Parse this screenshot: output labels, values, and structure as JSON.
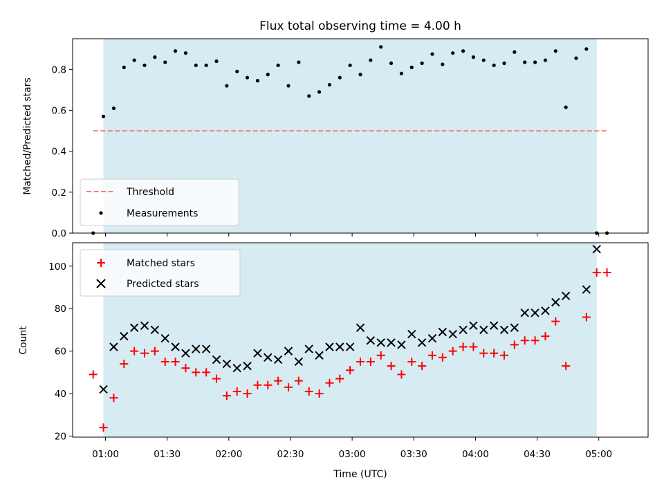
{
  "chart_data": {
    "type": "scatter",
    "title": "Flux total observing time = 4.00 h",
    "xlabel": "Time (UTC)",
    "x_unit": "UTC time",
    "shaded_interval": [
      "00:59",
      "04:59"
    ],
    "shade_color": "#add8e6",
    "x_ticks": [
      "01:00",
      "01:30",
      "02:00",
      "02:30",
      "03:00",
      "03:30",
      "04:00",
      "04:30",
      "05:00"
    ],
    "panels": [
      {
        "ylabel": "Matched/Predicted stars",
        "ylim": [
          0,
          0.95
        ],
        "y_ticks": [
          "0.0",
          "0.2",
          "0.4",
          "0.6",
          "0.8"
        ],
        "legend": {
          "placement": "lower-left",
          "entries": [
            "Threshold",
            "Measurements"
          ]
        },
        "series": [
          {
            "name": "Threshold",
            "type": "line",
            "color": "#f08080",
            "style": "dashed",
            "x": [
              "00:54",
              "05:04"
            ],
            "y": [
              0.5,
              0.5
            ]
          },
          {
            "name": "Measurements",
            "type": "scatter",
            "color": "#000000",
            "marker": "dot",
            "x": [
              "00:54",
              "00:59",
              "01:04",
              "01:09",
              "01:14",
              "01:19",
              "01:24",
              "01:29",
              "01:34",
              "01:39",
              "01:44",
              "01:49",
              "01:54",
              "01:59",
              "02:04",
              "02:09",
              "02:14",
              "02:19",
              "02:24",
              "02:29",
              "02:34",
              "02:39",
              "02:44",
              "02:49",
              "02:54",
              "02:59",
              "03:04",
              "03:09",
              "03:14",
              "03:19",
              "03:24",
              "03:29",
              "03:34",
              "03:39",
              "03:44",
              "03:49",
              "03:54",
              "03:59",
              "04:04",
              "04:09",
              "04:14",
              "04:19",
              "04:24",
              "04:29",
              "04:34",
              "04:39",
              "04:44",
              "04:49",
              "04:54",
              "04:59",
              "05:04"
            ],
            "y": [
              0.0,
              0.57,
              0.61,
              0.81,
              0.845,
              0.82,
              0.86,
              0.835,
              0.89,
              0.88,
              0.82,
              0.82,
              0.84,
              0.72,
              0.79,
              0.76,
              0.745,
              0.775,
              0.82,
              0.72,
              0.835,
              0.67,
              0.69,
              0.725,
              0.76,
              0.82,
              0.775,
              0.845,
              0.91,
              0.83,
              0.78,
              0.81,
              0.83,
              0.875,
              0.825,
              0.88,
              0.89,
              0.86,
              0.845,
              0.82,
              0.83,
              0.885,
              0.835,
              0.835,
              0.845,
              0.89,
              0.615,
              0.855,
              0.9,
              0.0,
              0.0
            ]
          }
        ]
      },
      {
        "ylabel": "Count",
        "ylim": [
          19.5,
          111
        ],
        "y_ticks": [
          "20",
          "40",
          "60",
          "80",
          "100"
        ],
        "legend": {
          "placement": "upper-left",
          "entries": [
            "Matched stars",
            "Predicted stars"
          ]
        },
        "series": [
          {
            "name": "Matched stars",
            "type": "scatter",
            "color": "#ff0000",
            "marker": "plus",
            "x": [
              "00:54",
              "00:59",
              "01:04",
              "01:09",
              "01:14",
              "01:19",
              "01:24",
              "01:29",
              "01:34",
              "01:39",
              "01:44",
              "01:49",
              "01:54",
              "01:59",
              "02:04",
              "02:09",
              "02:14",
              "02:19",
              "02:24",
              "02:29",
              "02:34",
              "02:39",
              "02:44",
              "02:49",
              "02:54",
              "02:59",
              "03:04",
              "03:09",
              "03:14",
              "03:19",
              "03:24",
              "03:29",
              "03:34",
              "03:39",
              "03:44",
              "03:49",
              "03:54",
              "03:59",
              "04:04",
              "04:09",
              "04:14",
              "04:19",
              "04:24",
              "04:29",
              "04:34",
              "04:39",
              "04:44",
              "04:54",
              "04:59",
              "05:04"
            ],
            "y": [
              49,
              24,
              38,
              54,
              60,
              59,
              60,
              55,
              55,
              52,
              50,
              50,
              47,
              39,
              41,
              40,
              44,
              44,
              46,
              43,
              46,
              41,
              40,
              45,
              47,
              51,
              55,
              55,
              58,
              53,
              49,
              55,
              53,
              58,
              57,
              60,
              62,
              62,
              59,
              59,
              58,
              63,
              65,
              65,
              67,
              74,
              53,
              76,
              97,
              97
            ]
          },
          {
            "name": "Predicted stars",
            "type": "scatter",
            "color": "#000000",
            "marker": "x",
            "x": [
              "00:59",
              "01:04",
              "01:09",
              "01:14",
              "01:19",
              "01:24",
              "01:29",
              "01:34",
              "01:39",
              "01:44",
              "01:49",
              "01:54",
              "01:59",
              "02:04",
              "02:09",
              "02:14",
              "02:19",
              "02:24",
              "02:29",
              "02:34",
              "02:39",
              "02:44",
              "02:49",
              "02:54",
              "02:59",
              "03:04",
              "03:09",
              "03:14",
              "03:19",
              "03:24",
              "03:29",
              "03:34",
              "03:39",
              "03:44",
              "03:49",
              "03:54",
              "03:59",
              "04:04",
              "04:09",
              "04:14",
              "04:19",
              "04:24",
              "04:29",
              "04:34",
              "04:39",
              "04:44",
              "04:54",
              "04:59"
            ],
            "y": [
              42,
              62,
              67,
              71,
              72,
              70,
              66,
              62,
              59,
              61,
              61,
              56,
              54,
              52,
              53,
              59,
              57,
              56,
              60,
              55,
              61,
              58,
              62,
              62,
              62,
              71,
              65,
              64,
              64,
              63,
              68,
              64,
              66,
              69,
              68,
              70,
              72,
              70,
              72,
              70,
              71,
              78,
              78,
              79,
              83,
              86,
              89,
              108
            ]
          }
        ]
      }
    ]
  }
}
